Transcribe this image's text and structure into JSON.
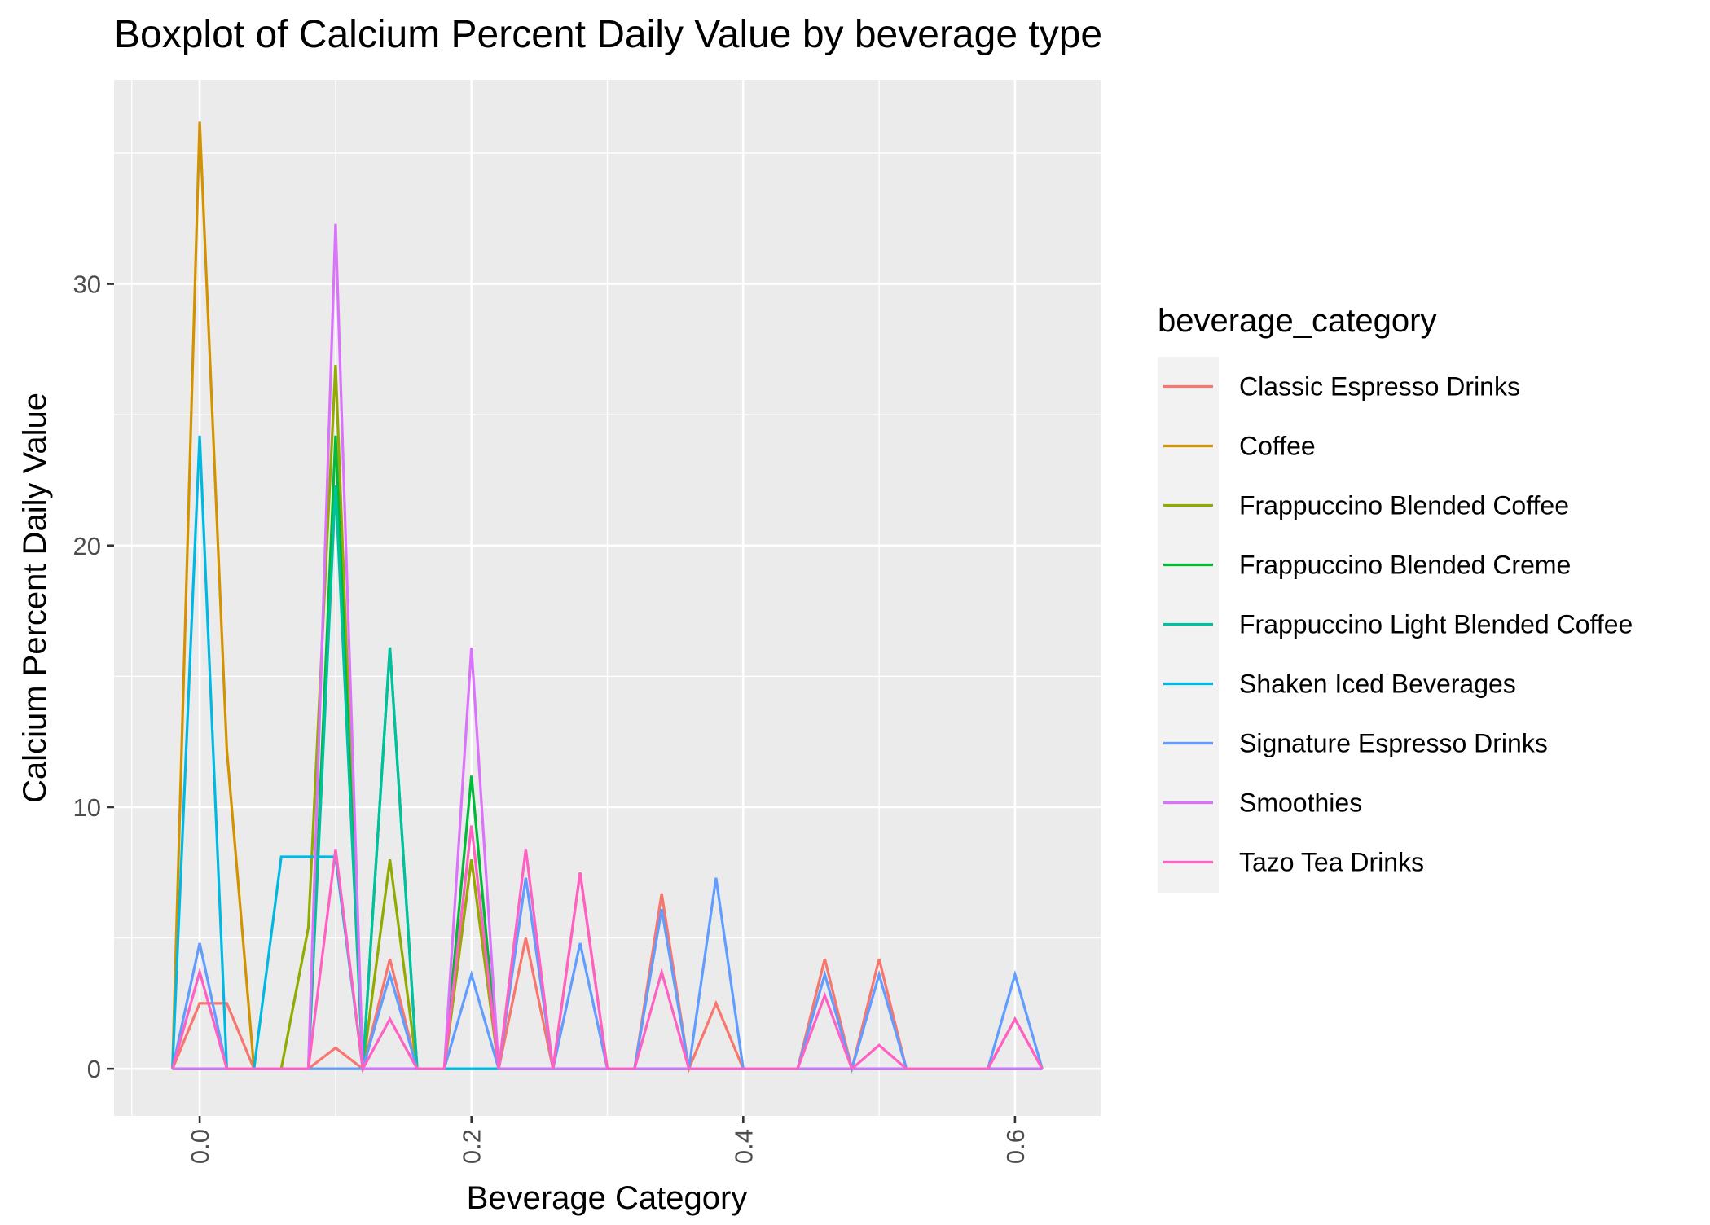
{
  "chart_data": {
    "type": "line",
    "title": "Boxplot of Calcium Percent Daily Value by beverage type",
    "xlabel": "Beverage Category",
    "ylabel": "Calcium Percent Daily Value",
    "xlim": [
      -0.063,
      0.663
    ],
    "ylim": [
      -1.8,
      37.8
    ],
    "x_ticks": [
      0.0,
      0.2,
      0.4,
      0.6
    ],
    "x_tick_labels": [
      "0.0",
      "0.2",
      "0.4",
      "0.6"
    ],
    "y_ticks": [
      0,
      10,
      20,
      30
    ],
    "y_tick_labels": [
      "0",
      "10",
      "20",
      "30"
    ],
    "x_minor": [
      -0.05,
      0.1,
      0.3,
      0.5
    ],
    "y_minor": [
      5,
      15,
      25,
      35
    ],
    "grid": true,
    "legend_title": "beverage_category",
    "legend_position": "right",
    "x": [
      -0.02,
      0.0,
      0.02,
      0.04,
      0.06,
      0.08,
      0.1,
      0.12,
      0.14,
      0.16,
      0.18,
      0.2,
      0.22,
      0.24,
      0.26,
      0.28,
      0.3,
      0.32,
      0.34,
      0.36,
      0.38,
      0.4,
      0.42,
      0.44,
      0.46,
      0.48,
      0.5,
      0.52,
      0.54,
      0.56,
      0.58,
      0.6,
      0.62
    ],
    "series": [
      {
        "name": "Classic Espresso Drinks",
        "color": "#F8766D",
        "values": [
          0,
          2.5,
          2.5,
          0,
          0,
          0,
          0.8,
          0,
          4.2,
          0,
          0,
          8,
          0,
          5,
          0,
          7.5,
          0,
          0,
          6.7,
          0,
          2.5,
          0,
          0,
          0,
          4.2,
          0,
          4.2,
          0,
          0,
          0,
          0,
          1.9,
          0
        ]
      },
      {
        "name": "Coffee",
        "color": "#D39200",
        "values": [
          0,
          36.2,
          12.2,
          0,
          0,
          0,
          0,
          0,
          0,
          0,
          0,
          0,
          0,
          0,
          0,
          0,
          0,
          0,
          0,
          0,
          0,
          0,
          0,
          0,
          0,
          0,
          0,
          0,
          0,
          0,
          0,
          0,
          0
        ]
      },
      {
        "name": "Frappuccino Blended Coffee",
        "color": "#93AA00",
        "values": [
          0,
          0,
          0,
          0,
          0,
          5.4,
          26.9,
          0,
          8,
          0,
          0,
          8,
          0,
          0,
          0,
          0,
          0,
          0,
          0,
          0,
          0,
          0,
          0,
          0,
          0,
          0,
          0,
          0,
          0,
          0,
          0,
          0,
          0
        ]
      },
      {
        "name": "Frappuccino Blended Creme",
        "color": "#00BA38",
        "values": [
          0,
          0,
          0,
          0,
          0,
          0,
          24.2,
          0,
          16.1,
          0,
          0,
          11.2,
          0,
          0,
          0,
          0,
          0,
          0,
          0,
          0,
          0,
          0,
          0,
          0,
          0,
          0,
          0,
          0,
          0,
          0,
          0,
          0,
          0
        ]
      },
      {
        "name": "Frappuccino Light Blended Coffee",
        "color": "#00C19F",
        "values": [
          0,
          0,
          0,
          0,
          0,
          0,
          22.3,
          0,
          16.1,
          0,
          0,
          0,
          0,
          0,
          0,
          0,
          0,
          0,
          0,
          0,
          0,
          0,
          0,
          0,
          0,
          0,
          0,
          0,
          0,
          0,
          0,
          0,
          0
        ]
      },
      {
        "name": "Shaken Iced Beverages",
        "color": "#00B9E3",
        "values": [
          0,
          24.2,
          0,
          0,
          8.1,
          8.1,
          8.1,
          0,
          0,
          0,
          0,
          0,
          0,
          0,
          0,
          0,
          0,
          0,
          0,
          0,
          0,
          0,
          0,
          0,
          0,
          0,
          0,
          0,
          0,
          0,
          0,
          0,
          0
        ]
      },
      {
        "name": "Signature Espresso Drinks",
        "color": "#619CFF",
        "values": [
          0,
          4.8,
          0,
          0,
          0,
          0,
          0,
          0,
          3.6,
          0,
          0,
          3.6,
          0,
          7.3,
          0,
          4.8,
          0,
          0,
          6.1,
          0,
          7.3,
          0,
          0,
          0,
          3.6,
          0,
          3.6,
          0,
          0,
          0,
          0,
          3.6,
          0
        ]
      },
      {
        "name": "Smoothies",
        "color": "#DB72FB",
        "values": [
          0,
          0,
          0,
          0,
          0,
          0,
          32.3,
          0,
          0,
          0,
          0,
          16.1,
          0,
          0,
          0,
          0,
          0,
          0,
          0,
          0,
          0,
          0,
          0,
          0,
          0,
          0,
          0,
          0,
          0,
          0,
          0,
          0,
          0
        ]
      },
      {
        "name": "Tazo Tea Drinks",
        "color": "#FF61C3",
        "values": [
          0,
          3.7,
          0,
          0,
          0,
          0,
          8.4,
          0,
          1.9,
          0,
          0,
          9.3,
          0,
          8.4,
          0,
          7.5,
          0,
          0,
          3.7,
          0,
          0,
          0,
          0,
          0,
          2.8,
          0,
          0.9,
          0,
          0,
          0,
          0,
          1.9,
          0
        ]
      }
    ]
  }
}
